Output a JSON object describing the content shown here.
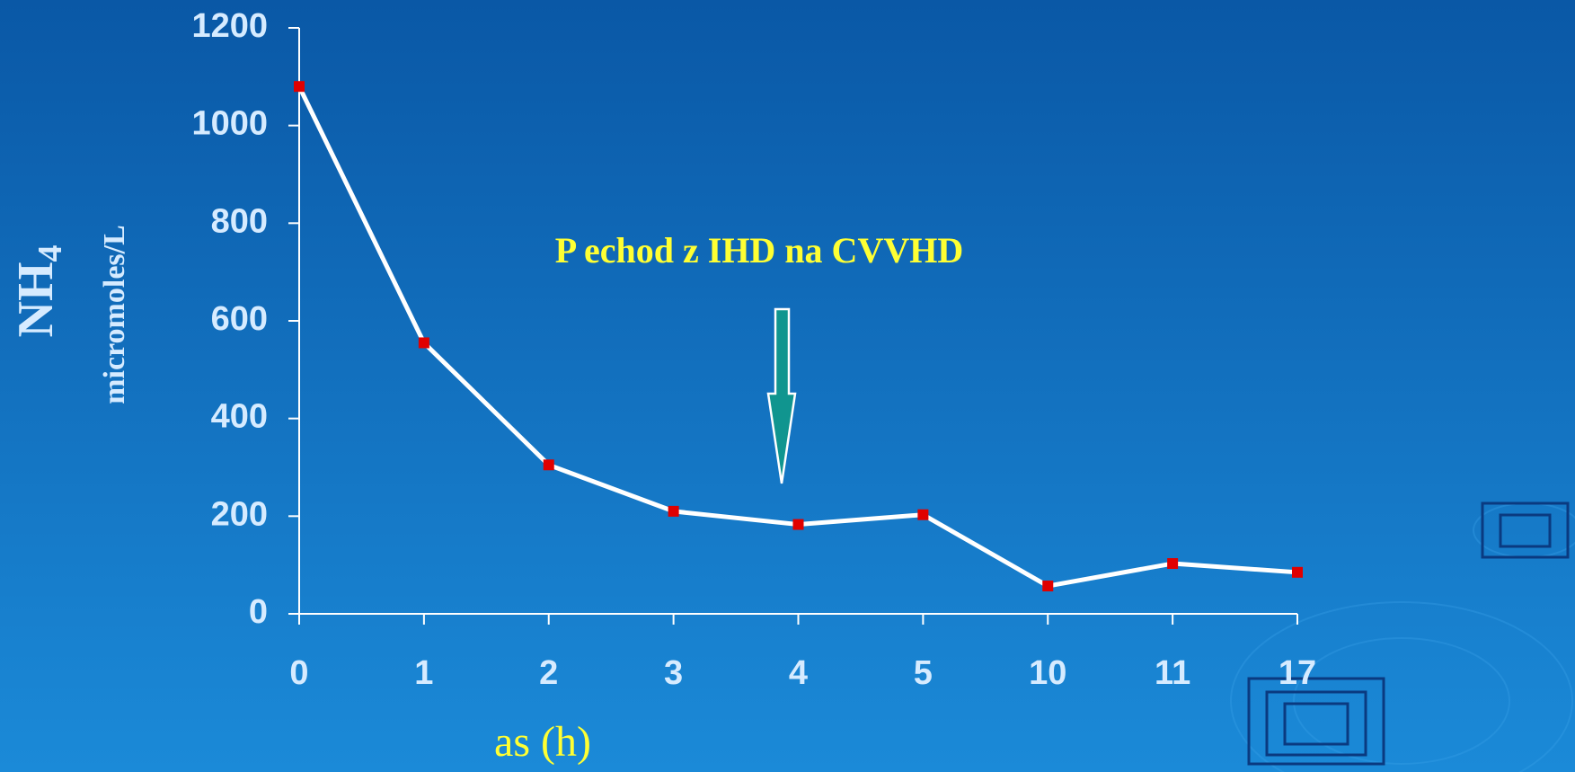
{
  "chart_data": {
    "type": "line",
    "y_label": "NH",
    "y_label_subscript": "4",
    "y_label_unit": "micromoles/L",
    "x_label": "as (h)",
    "annotation": "P  echod z IHD na CVVHD",
    "categories": [
      "0",
      "1",
      "2",
      "3",
      "4",
      "5",
      "10",
      "11",
      "17"
    ],
    "values": [
      1080,
      555,
      305,
      210,
      183,
      203,
      57,
      103,
      85
    ],
    "color": "#ffffff",
    "marker_color": "#e00000",
    "ylim": [
      0,
      1200
    ],
    "yticks": [
      0,
      200,
      400,
      600,
      800,
      1000,
      1200
    ]
  }
}
